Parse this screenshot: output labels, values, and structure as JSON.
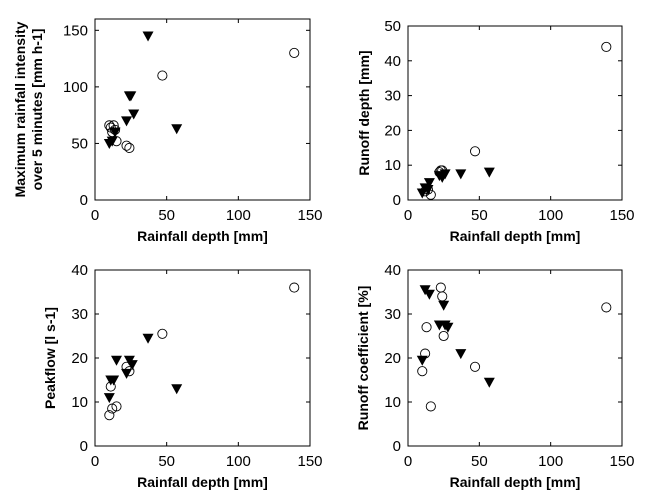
{
  "chart_data": [
    {
      "type": "scatter",
      "xlabel": "Rainfall depth [mm]",
      "ylabel_lines": [
        "Maximum rainfall intensity",
        "over 5 minutes [mm h-1]"
      ],
      "xlim": [
        0,
        150
      ],
      "ylim": [
        0,
        160
      ],
      "xticks": [
        0,
        50,
        100,
        150
      ],
      "yticks": [
        0,
        50,
        100,
        150
      ],
      "series": [
        {
          "marker": "circle",
          "x": [
            10,
            11,
            12,
            13,
            14,
            15,
            22,
            24,
            47,
            139
          ],
          "y": [
            66,
            64,
            60,
            66,
            62,
            52,
            48,
            46,
            110,
            130
          ]
        },
        {
          "marker": "triangle-down",
          "x": [
            10,
            12,
            14,
            22,
            24,
            25,
            27,
            37,
            57
          ],
          "y": [
            50,
            52,
            60,
            70,
            92,
            92,
            76,
            145,
            63
          ]
        }
      ]
    },
    {
      "type": "scatter",
      "xlabel": "Rainfall depth [mm]",
      "ylabel_lines": [
        "Runoff depth [mm]"
      ],
      "xlim": [
        0,
        150
      ],
      "ylim": [
        0,
        50
      ],
      "xticks": [
        0,
        50,
        100,
        150
      ],
      "yticks": [
        0,
        10,
        20,
        30,
        40,
        50
      ],
      "series": [
        {
          "marker": "circle",
          "x": [
            12,
            14,
            16,
            22,
            23,
            24,
            47,
            139
          ],
          "y": [
            2.5,
            3,
            1.5,
            8,
            8.5,
            8.5,
            14,
            44
          ]
        },
        {
          "marker": "triangle-down",
          "x": [
            10,
            12,
            14,
            15,
            22,
            24,
            26,
            37,
            57
          ],
          "y": [
            2,
            3.5,
            3,
            5,
            7,
            6.5,
            7.5,
            7.5,
            8
          ]
        }
      ]
    },
    {
      "type": "scatter",
      "xlabel": "Rainfall depth [mm]",
      "ylabel_lines": [
        "Peakflow [l s-1]"
      ],
      "xlim": [
        0,
        150
      ],
      "ylim": [
        0,
        40
      ],
      "xticks": [
        0,
        50,
        100,
        150
      ],
      "yticks": [
        0,
        10,
        20,
        30,
        40
      ],
      "series": [
        {
          "marker": "circle",
          "x": [
            10,
            11,
            12,
            15,
            22,
            24,
            47,
            139
          ],
          "y": [
            7,
            13.5,
            8.5,
            9,
            18,
            17,
            25.5,
            36
          ]
        },
        {
          "marker": "triangle-down",
          "x": [
            10,
            11,
            13,
            15,
            22,
            24,
            26,
            37,
            57
          ],
          "y": [
            11,
            15,
            15,
            19.5,
            16.5,
            19.5,
            18.5,
            24.5,
            13
          ]
        }
      ]
    },
    {
      "type": "scatter",
      "xlabel": "Rainfall depth [mm]",
      "ylabel_lines": [
        "Runoff coefficient [%]"
      ],
      "xlim": [
        0,
        150
      ],
      "ylim": [
        0,
        40
      ],
      "xticks": [
        0,
        50,
        100,
        150
      ],
      "yticks": [
        0,
        10,
        20,
        30,
        40
      ],
      "series": [
        {
          "marker": "circle",
          "x": [
            10,
            12,
            13,
            16,
            23,
            24,
            25,
            47,
            139
          ],
          "y": [
            17,
            21,
            27,
            9,
            36,
            34,
            25,
            18,
            31.5
          ]
        },
        {
          "marker": "triangle-down",
          "x": [
            10,
            12,
            15,
            22,
            25,
            26,
            28,
            37,
            57
          ],
          "y": [
            19.5,
            35.5,
            34.5,
            27.5,
            32,
            27.5,
            27,
            21,
            14.5
          ]
        }
      ]
    }
  ]
}
